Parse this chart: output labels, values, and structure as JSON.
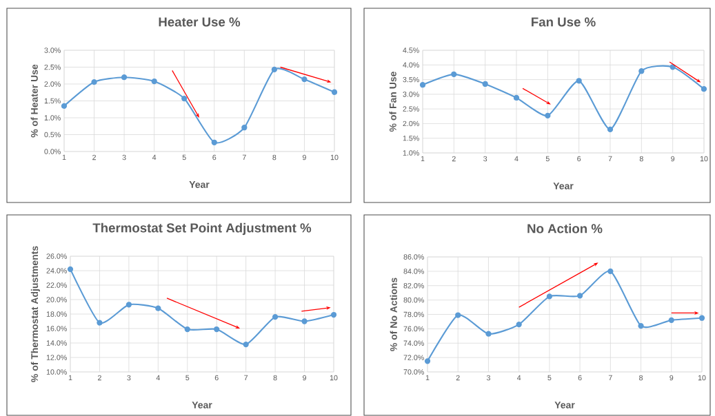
{
  "chart_data": [
    {
      "type": "line",
      "title": "Heater Use %",
      "xlabel": "Year",
      "ylabel": "% of Heater Use",
      "categories": [
        "1",
        "2",
        "3",
        "4",
        "5",
        "6",
        "7",
        "8",
        "9",
        "10"
      ],
      "series": [
        {
          "color": "#5b9bd5",
          "values": [
            1.35,
            2.06,
            2.2,
            2.08,
            1.57,
            0.27,
            0.71,
            2.43,
            2.14,
            1.76
          ]
        }
      ],
      "ylim": [
        0,
        3
      ],
      "yticks": [
        {
          "value": 0,
          "label": "0.0%"
        },
        {
          "value": 0.5,
          "label": "0.5%"
        },
        {
          "value": 1,
          "label": "1.0%"
        },
        {
          "value": 1.5,
          "label": "1.5%"
        },
        {
          "value": 2,
          "label": "2.0%"
        },
        {
          "value": 2.5,
          "label": "2.5%"
        },
        {
          "value": 3,
          "label": "3.0%"
        }
      ],
      "grid": true,
      "marker": "circle",
      "line_style": "solid"
    },
    {
      "type": "line",
      "title": "Fan Use %",
      "xlabel": "Year",
      "ylabel": "% of Fan Use",
      "categories": [
        "1",
        "2",
        "3",
        "4",
        "5",
        "6",
        "7",
        "8",
        "9",
        "10"
      ],
      "series": [
        {
          "color": "#5b9bd5",
          "values": [
            3.32,
            3.68,
            3.35,
            2.88,
            2.27,
            3.46,
            1.8,
            3.79,
            3.93,
            3.18
          ]
        }
      ],
      "ylim": [
        1,
        4.5
      ],
      "yticks": [
        {
          "value": 1,
          "label": "1.0%"
        },
        {
          "value": 1.5,
          "label": "1.5%"
        },
        {
          "value": 2,
          "label": "2.0%"
        },
        {
          "value": 2.5,
          "label": "2.5%"
        },
        {
          "value": 3,
          "label": "3.0%"
        },
        {
          "value": 3.5,
          "label": "3.5%"
        },
        {
          "value": 4,
          "label": "4.0%"
        },
        {
          "value": 4.5,
          "label": "4.5%"
        }
      ],
      "grid": true,
      "marker": "circle",
      "line_style": "solid"
    },
    {
      "type": "line",
      "title": "Thermostat Set Point Adjustment %",
      "xlabel": "Year",
      "ylabel": "% of Thermostat Adjustments",
      "categories": [
        "1",
        "2",
        "3",
        "4",
        "5",
        "6",
        "7",
        "8",
        "9",
        "10"
      ],
      "series": [
        {
          "color": "#5b9bd5",
          "values": [
            24.2,
            16.8,
            19.3,
            18.8,
            15.9,
            15.9,
            13.8,
            17.6,
            17.0,
            17.9
          ]
        }
      ],
      "ylim": [
        10,
        26
      ],
      "yticks": [
        {
          "value": 10,
          "label": "10.0%"
        },
        {
          "value": 12,
          "label": "12.0%"
        },
        {
          "value": 14,
          "label": "14.0%"
        },
        {
          "value": 16,
          "label": "16.0%"
        },
        {
          "value": 18,
          "label": "18.0%"
        },
        {
          "value": 20,
          "label": "20.0%"
        },
        {
          "value": 22,
          "label": "22.0%"
        },
        {
          "value": 24,
          "label": "24.0%"
        },
        {
          "value": 26,
          "label": "26.0%"
        }
      ],
      "grid": true,
      "marker": "circle",
      "line_style": "solid"
    },
    {
      "type": "line",
      "title": "No Action %",
      "xlabel": "Year",
      "ylabel": "% of No Actions",
      "categories": [
        "1",
        "2",
        "3",
        "4",
        "5",
        "6",
        "7",
        "8",
        "9",
        "10"
      ],
      "series": [
        {
          "color": "#5b9bd5",
          "values": [
            71.5,
            77.9,
            75.3,
            76.6,
            80.5,
            80.6,
            84.0,
            76.4,
            77.2,
            77.5
          ]
        }
      ],
      "ylim": [
        70,
        86
      ],
      "yticks": [
        {
          "value": 70,
          "label": "70.0%"
        },
        {
          "value": 72,
          "label": "72.0%"
        },
        {
          "value": 74,
          "label": "74.0%"
        },
        {
          "value": 76,
          "label": "76.0%"
        },
        {
          "value": 78,
          "label": "78.0%"
        },
        {
          "value": 80,
          "label": "80.0%"
        },
        {
          "value": 82,
          "label": "82.0%"
        },
        {
          "value": 84,
          "label": "84.0%"
        },
        {
          "value": 86,
          "label": "86.0%"
        }
      ],
      "grid": true,
      "marker": "circle",
      "line_style": "solid"
    }
  ]
}
